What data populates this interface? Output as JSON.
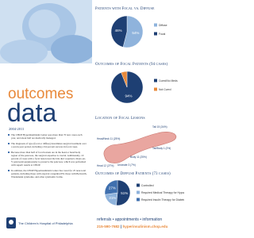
{
  "focal_vs_diffuse": {
    "title": "Patients with Focal vs. Diffuse",
    "categories": [
      "Diffuse",
      "Focal"
    ],
    "values": [
      54,
      46
    ],
    "value_labels": [
      "54%",
      "46%"
    ],
    "colors": [
      "#8fb3dc",
      "#1e3f73"
    ]
  },
  "focal_outcomes": {
    "title": "Outcomes of Focal Patients (94 cases)",
    "categories": [
      "Cured/No Meds",
      "Not Cured"
    ],
    "values": [
      94,
      6
    ],
    "value_labels": [
      "94%",
      null
    ],
    "colors": [
      "#1e3f73",
      "#e8893a"
    ]
  },
  "heading": {
    "outcomes": "outcomes",
    "data": "data",
    "years": "2004-2011"
  },
  "bullets": [
    "The CHOP Hyperinsulinism Center sees more than 70 new cases each year, and about half are medically managed.",
    "The diagnosis of type (focal or diffuse) determines surgical treatment over a seven-year period, including a 94 percent success in focal cases.",
    "Because more than half of focal lesions are in the head or head/body region of the pancreas, the surgical expertise is crucial. Additionally, 10 percent of cases with a focal lesion near the bile duct required a Roux-en-Y pancreaticojejunostomy to preserve the pancreas, which was performed with superb results at CHOP.",
    "In addition, the CHOP Hyperinsulinism Center has cared for 25 near-total patients, including those with atypical congenital HI, those with Beckwith-Wiedemann syndrome, and other syndromic forms."
  ],
  "lesions": {
    "title": "Location of Focal Lesions",
    "labels": [
      "Head/Neck 11 (25%)",
      "Tail 15 (34%)",
      "Tail/Body 1 (2%)",
      "Body 11 (25%)",
      "Uncinate 3 (7%)",
      "Head 12 (27%)"
    ]
  },
  "diffuse_outcomes": {
    "title": "Outcomes of Diffuse Patients (73 cases)",
    "categories": [
      "Controlled",
      "Required Medical Therapy for Hypoglycemia",
      "Required Insulin Therapy for Diabetes"
    ],
    "values": [
      51,
      21,
      27
    ],
    "value_labels": [
      "51%",
      "21%",
      "27%"
    ],
    "colors": [
      "#1e3f73",
      "#8fb3dc",
      "#3f6fae"
    ]
  },
  "footer": {
    "hospital": "The Children's Hospital of Philadelphia",
    "contact_line": "referrals • appointments • information",
    "phone": "215-590-7682",
    "web": "hyperinsulinism.chop.edu"
  }
}
